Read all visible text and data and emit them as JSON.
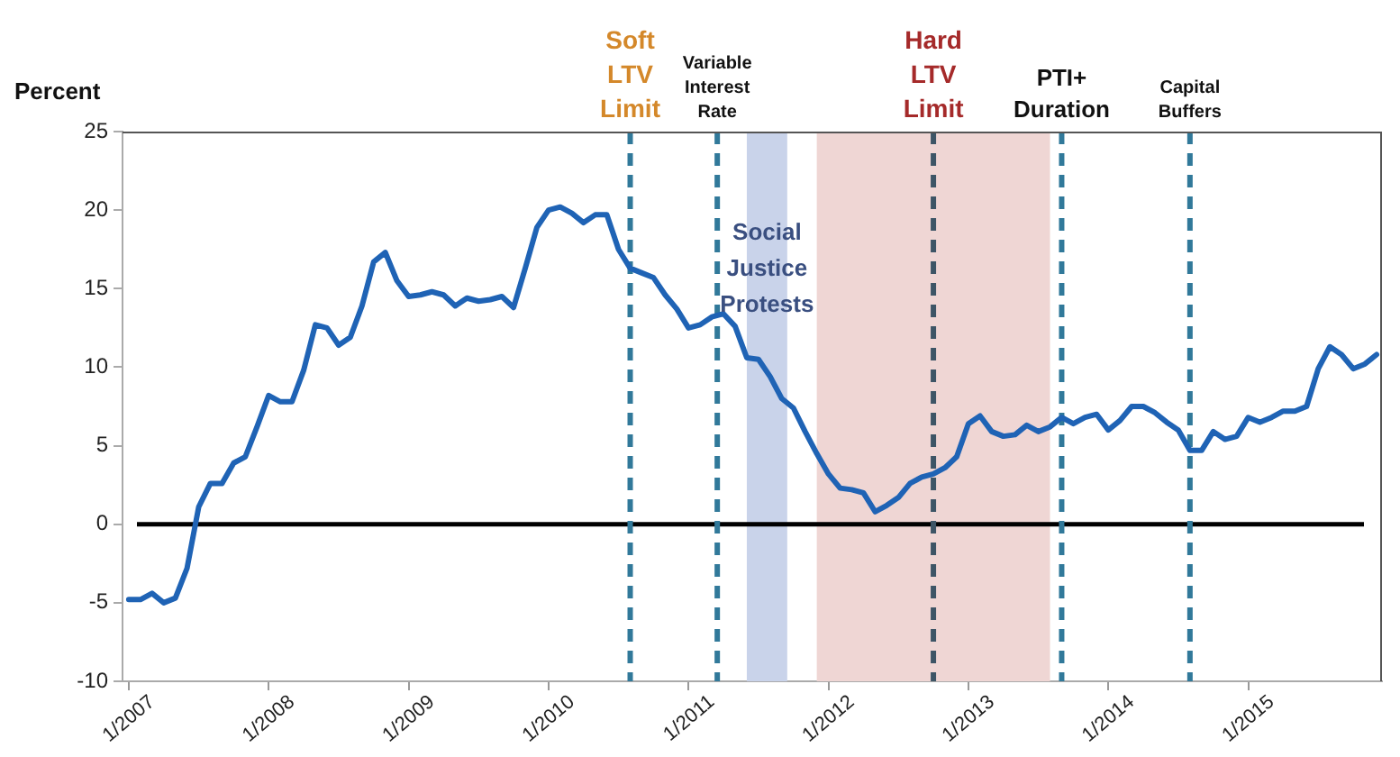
{
  "chart_data": {
    "type": "line",
    "ylabel": "Percent",
    "x": [
      "2007-01",
      "2007-02",
      "2007-03",
      "2007-04",
      "2007-05",
      "2007-06",
      "2007-07",
      "2007-08",
      "2007-09",
      "2007-10",
      "2007-11",
      "2007-12",
      "2008-01",
      "2008-02",
      "2008-03",
      "2008-04",
      "2008-05",
      "2008-06",
      "2008-07",
      "2008-08",
      "2008-09",
      "2008-10",
      "2008-11",
      "2008-12",
      "2009-01",
      "2009-02",
      "2009-03",
      "2009-04",
      "2009-05",
      "2009-06",
      "2009-07",
      "2009-08",
      "2009-09",
      "2009-10",
      "2009-11",
      "2009-12",
      "2010-01",
      "2010-02",
      "2010-03",
      "2010-04",
      "2010-05",
      "2010-06",
      "2010-07",
      "2010-08",
      "2010-09",
      "2010-10",
      "2010-11",
      "2010-12",
      "2011-01",
      "2011-02",
      "2011-03",
      "2011-04",
      "2011-05",
      "2011-06",
      "2011-07",
      "2011-08",
      "2011-09",
      "2011-10",
      "2011-11",
      "2011-12",
      "2012-01",
      "2012-02",
      "2012-03",
      "2012-04",
      "2012-05",
      "2012-06",
      "2012-07",
      "2012-08",
      "2012-09",
      "2012-10",
      "2012-11",
      "2012-12",
      "2013-01",
      "2013-02",
      "2013-03",
      "2013-04",
      "2013-05",
      "2013-06",
      "2013-07",
      "2013-08",
      "2013-09",
      "2013-10",
      "2013-11",
      "2013-12",
      "2014-01",
      "2014-02",
      "2014-03",
      "2014-04",
      "2014-05",
      "2014-06",
      "2014-07",
      "2014-08",
      "2014-09",
      "2014-10",
      "2014-11",
      "2014-12",
      "2015-01",
      "2015-02",
      "2015-03",
      "2015-04",
      "2015-05",
      "2015-06",
      "2015-07",
      "2015-08",
      "2015-09",
      "2015-10",
      "2015-11",
      "2015-12"
    ],
    "series": [
      {
        "color": "#1f63b5",
        "values": [
          -4.8,
          -4.8,
          -4.4,
          -5.0,
          -4.7,
          -2.8,
          1.1,
          2.6,
          2.6,
          3.9,
          4.3,
          6.2,
          8.2,
          7.8,
          7.8,
          9.8,
          12.7,
          12.5,
          11.4,
          11.9,
          13.9,
          16.7,
          17.3,
          15.5,
          14.5,
          14.6,
          14.8,
          14.6,
          13.9,
          14.4,
          14.2,
          14.3,
          14.5,
          13.8,
          16.3,
          18.9,
          20.0,
          20.2,
          19.8,
          19.2,
          19.7,
          19.7,
          17.5,
          16.3,
          16.0,
          15.7,
          14.6,
          13.7,
          12.5,
          12.7,
          13.2,
          13.4,
          12.6,
          10.6,
          10.5,
          9.4,
          8.0,
          7.4,
          5.9,
          4.5,
          3.2,
          2.3,
          2.2,
          2.0,
          0.8,
          1.2,
          1.7,
          2.6,
          3.0,
          3.2,
          3.6,
          4.3,
          6.4,
          6.9,
          5.9,
          5.6,
          5.7,
          6.3,
          5.9,
          6.2,
          6.8,
          6.4,
          6.8,
          7.0,
          6.0,
          6.6,
          7.5,
          7.5,
          7.1,
          6.5,
          6.0,
          4.7,
          4.7,
          5.9,
          5.4,
          5.6,
          6.8,
          6.5,
          6.8,
          7.2,
          7.2,
          7.5,
          9.9,
          11.3,
          10.8,
          9.9,
          10.2,
          10.8
        ]
      }
    ],
    "xlim": [
      "2006-12-15",
      "2015-12-15"
    ],
    "xticks": [
      {
        "value": "2007-01",
        "label": "1/2007"
      },
      {
        "value": "2008-01",
        "label": "1/2008"
      },
      {
        "value": "2009-01",
        "label": "1/2009"
      },
      {
        "value": "2010-01",
        "label": "1/2010"
      },
      {
        "value": "2011-01",
        "label": "1/2011"
      },
      {
        "value": "2012-01",
        "label": "1/2012"
      },
      {
        "value": "2013-01",
        "label": "1/2013"
      },
      {
        "value": "2014-01",
        "label": "1/2014"
      },
      {
        "value": "2015-01",
        "label": "1/2015"
      }
    ],
    "ylim": [
      -10,
      25
    ],
    "yticks": [
      -10,
      -5,
      0,
      5,
      10,
      15,
      20,
      25
    ],
    "grid": false,
    "legend": false,
    "marker": "none",
    "line_style": "solid",
    "ref_lines": [
      {
        "axis": "y",
        "value": 0,
        "color": "#000000",
        "line_style": "solid"
      },
      {
        "axis": "x",
        "value": "2010-08",
        "label": "Soft LTV Limit",
        "color": "#31799a",
        "line_style": "dashed"
      },
      {
        "axis": "x",
        "value": "2011-03-15",
        "label": "Variable Interest Rate",
        "color": "#31799a",
        "line_style": "dashed"
      },
      {
        "axis": "x",
        "value": "2012-10",
        "label": "Hard LTV Limit",
        "color": "#3d5566",
        "line_style": "dashed"
      },
      {
        "axis": "x",
        "value": "2013-09",
        "label": "PTI+ Duration",
        "color": "#31799a",
        "line_style": "dashed"
      },
      {
        "axis": "x",
        "value": "2014-08",
        "label": "Capital Buffers",
        "color": "#31799a",
        "line_style": "dashed"
      }
    ],
    "bands": [
      {
        "axis": "x",
        "from": "2011-06",
        "to": "2011-09-15",
        "label": "Social Justice Protests",
        "color": "#c9d3ea"
      },
      {
        "axis": "x",
        "from": "2011-12",
        "to": "2013-08",
        "color": "#efd6d4"
      }
    ]
  }
}
